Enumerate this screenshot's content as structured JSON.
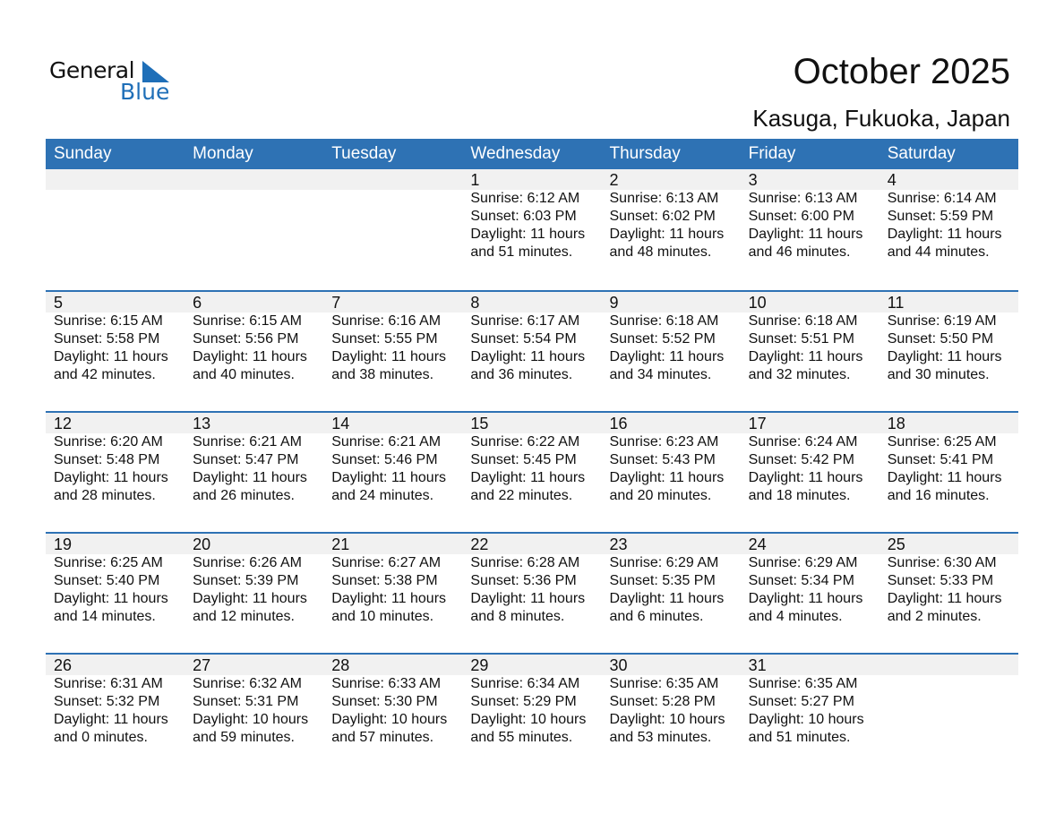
{
  "logo": {
    "text_general": "General",
    "text_blue": "Blue"
  },
  "header": {
    "title": "October 2025",
    "location": "Kasuga, Fukuoka, Japan"
  },
  "colors": {
    "accent": "#2e72b4",
    "band": "#f1f1f1",
    "logo_blue": "#1f6fb8"
  },
  "weekdays": [
    "Sunday",
    "Monday",
    "Tuesday",
    "Wednesday",
    "Thursday",
    "Friday",
    "Saturday"
  ],
  "first_weekday_offset": 3,
  "days": [
    {
      "day": "1",
      "sunrise": "Sunrise: 6:12 AM",
      "sunset": "Sunset: 6:03 PM",
      "daylight1": "Daylight: 11 hours",
      "daylight2": "and 51 minutes."
    },
    {
      "day": "2",
      "sunrise": "Sunrise: 6:13 AM",
      "sunset": "Sunset: 6:02 PM",
      "daylight1": "Daylight: 11 hours",
      "daylight2": "and 48 minutes."
    },
    {
      "day": "3",
      "sunrise": "Sunrise: 6:13 AM",
      "sunset": "Sunset: 6:00 PM",
      "daylight1": "Daylight: 11 hours",
      "daylight2": "and 46 minutes."
    },
    {
      "day": "4",
      "sunrise": "Sunrise: 6:14 AM",
      "sunset": "Sunset: 5:59 PM",
      "daylight1": "Daylight: 11 hours",
      "daylight2": "and 44 minutes."
    },
    {
      "day": "5",
      "sunrise": "Sunrise: 6:15 AM",
      "sunset": "Sunset: 5:58 PM",
      "daylight1": "Daylight: 11 hours",
      "daylight2": "and 42 minutes."
    },
    {
      "day": "6",
      "sunrise": "Sunrise: 6:15 AM",
      "sunset": "Sunset: 5:56 PM",
      "daylight1": "Daylight: 11 hours",
      "daylight2": "and 40 minutes."
    },
    {
      "day": "7",
      "sunrise": "Sunrise: 6:16 AM",
      "sunset": "Sunset: 5:55 PM",
      "daylight1": "Daylight: 11 hours",
      "daylight2": "and 38 minutes."
    },
    {
      "day": "8",
      "sunrise": "Sunrise: 6:17 AM",
      "sunset": "Sunset: 5:54 PM",
      "daylight1": "Daylight: 11 hours",
      "daylight2": "and 36 minutes."
    },
    {
      "day": "9",
      "sunrise": "Sunrise: 6:18 AM",
      "sunset": "Sunset: 5:52 PM",
      "daylight1": "Daylight: 11 hours",
      "daylight2": "and 34 minutes."
    },
    {
      "day": "10",
      "sunrise": "Sunrise: 6:18 AM",
      "sunset": "Sunset: 5:51 PM",
      "daylight1": "Daylight: 11 hours",
      "daylight2": "and 32 minutes."
    },
    {
      "day": "11",
      "sunrise": "Sunrise: 6:19 AM",
      "sunset": "Sunset: 5:50 PM",
      "daylight1": "Daylight: 11 hours",
      "daylight2": "and 30 minutes."
    },
    {
      "day": "12",
      "sunrise": "Sunrise: 6:20 AM",
      "sunset": "Sunset: 5:48 PM",
      "daylight1": "Daylight: 11 hours",
      "daylight2": "and 28 minutes."
    },
    {
      "day": "13",
      "sunrise": "Sunrise: 6:21 AM",
      "sunset": "Sunset: 5:47 PM",
      "daylight1": "Daylight: 11 hours",
      "daylight2": "and 26 minutes."
    },
    {
      "day": "14",
      "sunrise": "Sunrise: 6:21 AM",
      "sunset": "Sunset: 5:46 PM",
      "daylight1": "Daylight: 11 hours",
      "daylight2": "and 24 minutes."
    },
    {
      "day": "15",
      "sunrise": "Sunrise: 6:22 AM",
      "sunset": "Sunset: 5:45 PM",
      "daylight1": "Daylight: 11 hours",
      "daylight2": "and 22 minutes."
    },
    {
      "day": "16",
      "sunrise": "Sunrise: 6:23 AM",
      "sunset": "Sunset: 5:43 PM",
      "daylight1": "Daylight: 11 hours",
      "daylight2": "and 20 minutes."
    },
    {
      "day": "17",
      "sunrise": "Sunrise: 6:24 AM",
      "sunset": "Sunset: 5:42 PM",
      "daylight1": "Daylight: 11 hours",
      "daylight2": "and 18 minutes."
    },
    {
      "day": "18",
      "sunrise": "Sunrise: 6:25 AM",
      "sunset": "Sunset: 5:41 PM",
      "daylight1": "Daylight: 11 hours",
      "daylight2": "and 16 minutes."
    },
    {
      "day": "19",
      "sunrise": "Sunrise: 6:25 AM",
      "sunset": "Sunset: 5:40 PM",
      "daylight1": "Daylight: 11 hours",
      "daylight2": "and 14 minutes."
    },
    {
      "day": "20",
      "sunrise": "Sunrise: 6:26 AM",
      "sunset": "Sunset: 5:39 PM",
      "daylight1": "Daylight: 11 hours",
      "daylight2": "and 12 minutes."
    },
    {
      "day": "21",
      "sunrise": "Sunrise: 6:27 AM",
      "sunset": "Sunset: 5:38 PM",
      "daylight1": "Daylight: 11 hours",
      "daylight2": "and 10 minutes."
    },
    {
      "day": "22",
      "sunrise": "Sunrise: 6:28 AM",
      "sunset": "Sunset: 5:36 PM",
      "daylight1": "Daylight: 11 hours",
      "daylight2": "and 8 minutes."
    },
    {
      "day": "23",
      "sunrise": "Sunrise: 6:29 AM",
      "sunset": "Sunset: 5:35 PM",
      "daylight1": "Daylight: 11 hours",
      "daylight2": "and 6 minutes."
    },
    {
      "day": "24",
      "sunrise": "Sunrise: 6:29 AM",
      "sunset": "Sunset: 5:34 PM",
      "daylight1": "Daylight: 11 hours",
      "daylight2": "and 4 minutes."
    },
    {
      "day": "25",
      "sunrise": "Sunrise: 6:30 AM",
      "sunset": "Sunset: 5:33 PM",
      "daylight1": "Daylight: 11 hours",
      "daylight2": "and 2 minutes."
    },
    {
      "day": "26",
      "sunrise": "Sunrise: 6:31 AM",
      "sunset": "Sunset: 5:32 PM",
      "daylight1": "Daylight: 11 hours",
      "daylight2": "and 0 minutes."
    },
    {
      "day": "27",
      "sunrise": "Sunrise: 6:32 AM",
      "sunset": "Sunset: 5:31 PM",
      "daylight1": "Daylight: 10 hours",
      "daylight2": "and 59 minutes."
    },
    {
      "day": "28",
      "sunrise": "Sunrise: 6:33 AM",
      "sunset": "Sunset: 5:30 PM",
      "daylight1": "Daylight: 10 hours",
      "daylight2": "and 57 minutes."
    },
    {
      "day": "29",
      "sunrise": "Sunrise: 6:34 AM",
      "sunset": "Sunset: 5:29 PM",
      "daylight1": "Daylight: 10 hours",
      "daylight2": "and 55 minutes."
    },
    {
      "day": "30",
      "sunrise": "Sunrise: 6:35 AM",
      "sunset": "Sunset: 5:28 PM",
      "daylight1": "Daylight: 10 hours",
      "daylight2": "and 53 minutes."
    },
    {
      "day": "31",
      "sunrise": "Sunrise: 6:35 AM",
      "sunset": "Sunset: 5:27 PM",
      "daylight1": "Daylight: 10 hours",
      "daylight2": "and 51 minutes."
    }
  ]
}
